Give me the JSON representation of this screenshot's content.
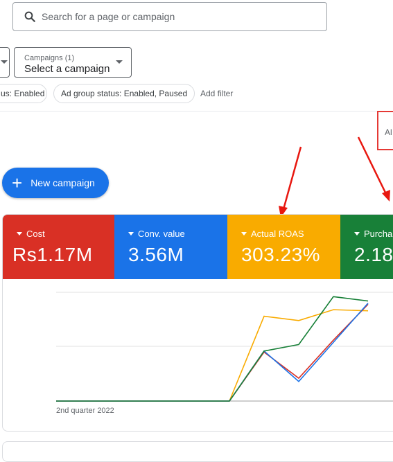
{
  "search": {
    "placeholder": "Search for a page or campaign"
  },
  "campaign_select": {
    "label": "Campaigns (1)",
    "value": "Select a campaign"
  },
  "filters": [
    {
      "text": "us: Enabled"
    },
    {
      "text": "Ad group status: Enabled, Paused"
    }
  ],
  "add_filter": "Add filter",
  "all_label": "Al",
  "new_campaign": {
    "label": "New campaign"
  },
  "metrics": [
    {
      "label": "Cost",
      "value": "Rs1.17M",
      "color": "#d93025"
    },
    {
      "label": "Conv. value",
      "value": "3.56M",
      "color": "#1a73e8"
    },
    {
      "label": "Actual ROAS",
      "value": "303.23%",
      "color": "#f9ab00"
    },
    {
      "label": "Purcha",
      "value": "2.18",
      "color": "#188038"
    }
  ],
  "chart_data": {
    "type": "line",
    "x": [
      0,
      1,
      2,
      3,
      4,
      5,
      6,
      7,
      8,
      9
    ],
    "xlabel": "2nd quarter 2022",
    "ylim": [
      0,
      100
    ],
    "series": [
      {
        "color": "#d93025",
        "values": [
          0,
          0,
          0,
          0,
          0,
          0,
          45,
          21,
          56,
          89
        ]
      },
      {
        "color": "#1a73e8",
        "values": [
          0,
          0,
          0,
          0,
          0,
          0,
          46,
          18,
          54,
          90
        ]
      },
      {
        "color": "#f9ab00",
        "values": [
          0,
          0,
          0,
          0,
          0,
          0,
          78,
          74,
          84,
          83
        ]
      },
      {
        "color": "#188038",
        "values": [
          0,
          0,
          0,
          0,
          0,
          0,
          46,
          52,
          96,
          92
        ]
      }
    ]
  }
}
